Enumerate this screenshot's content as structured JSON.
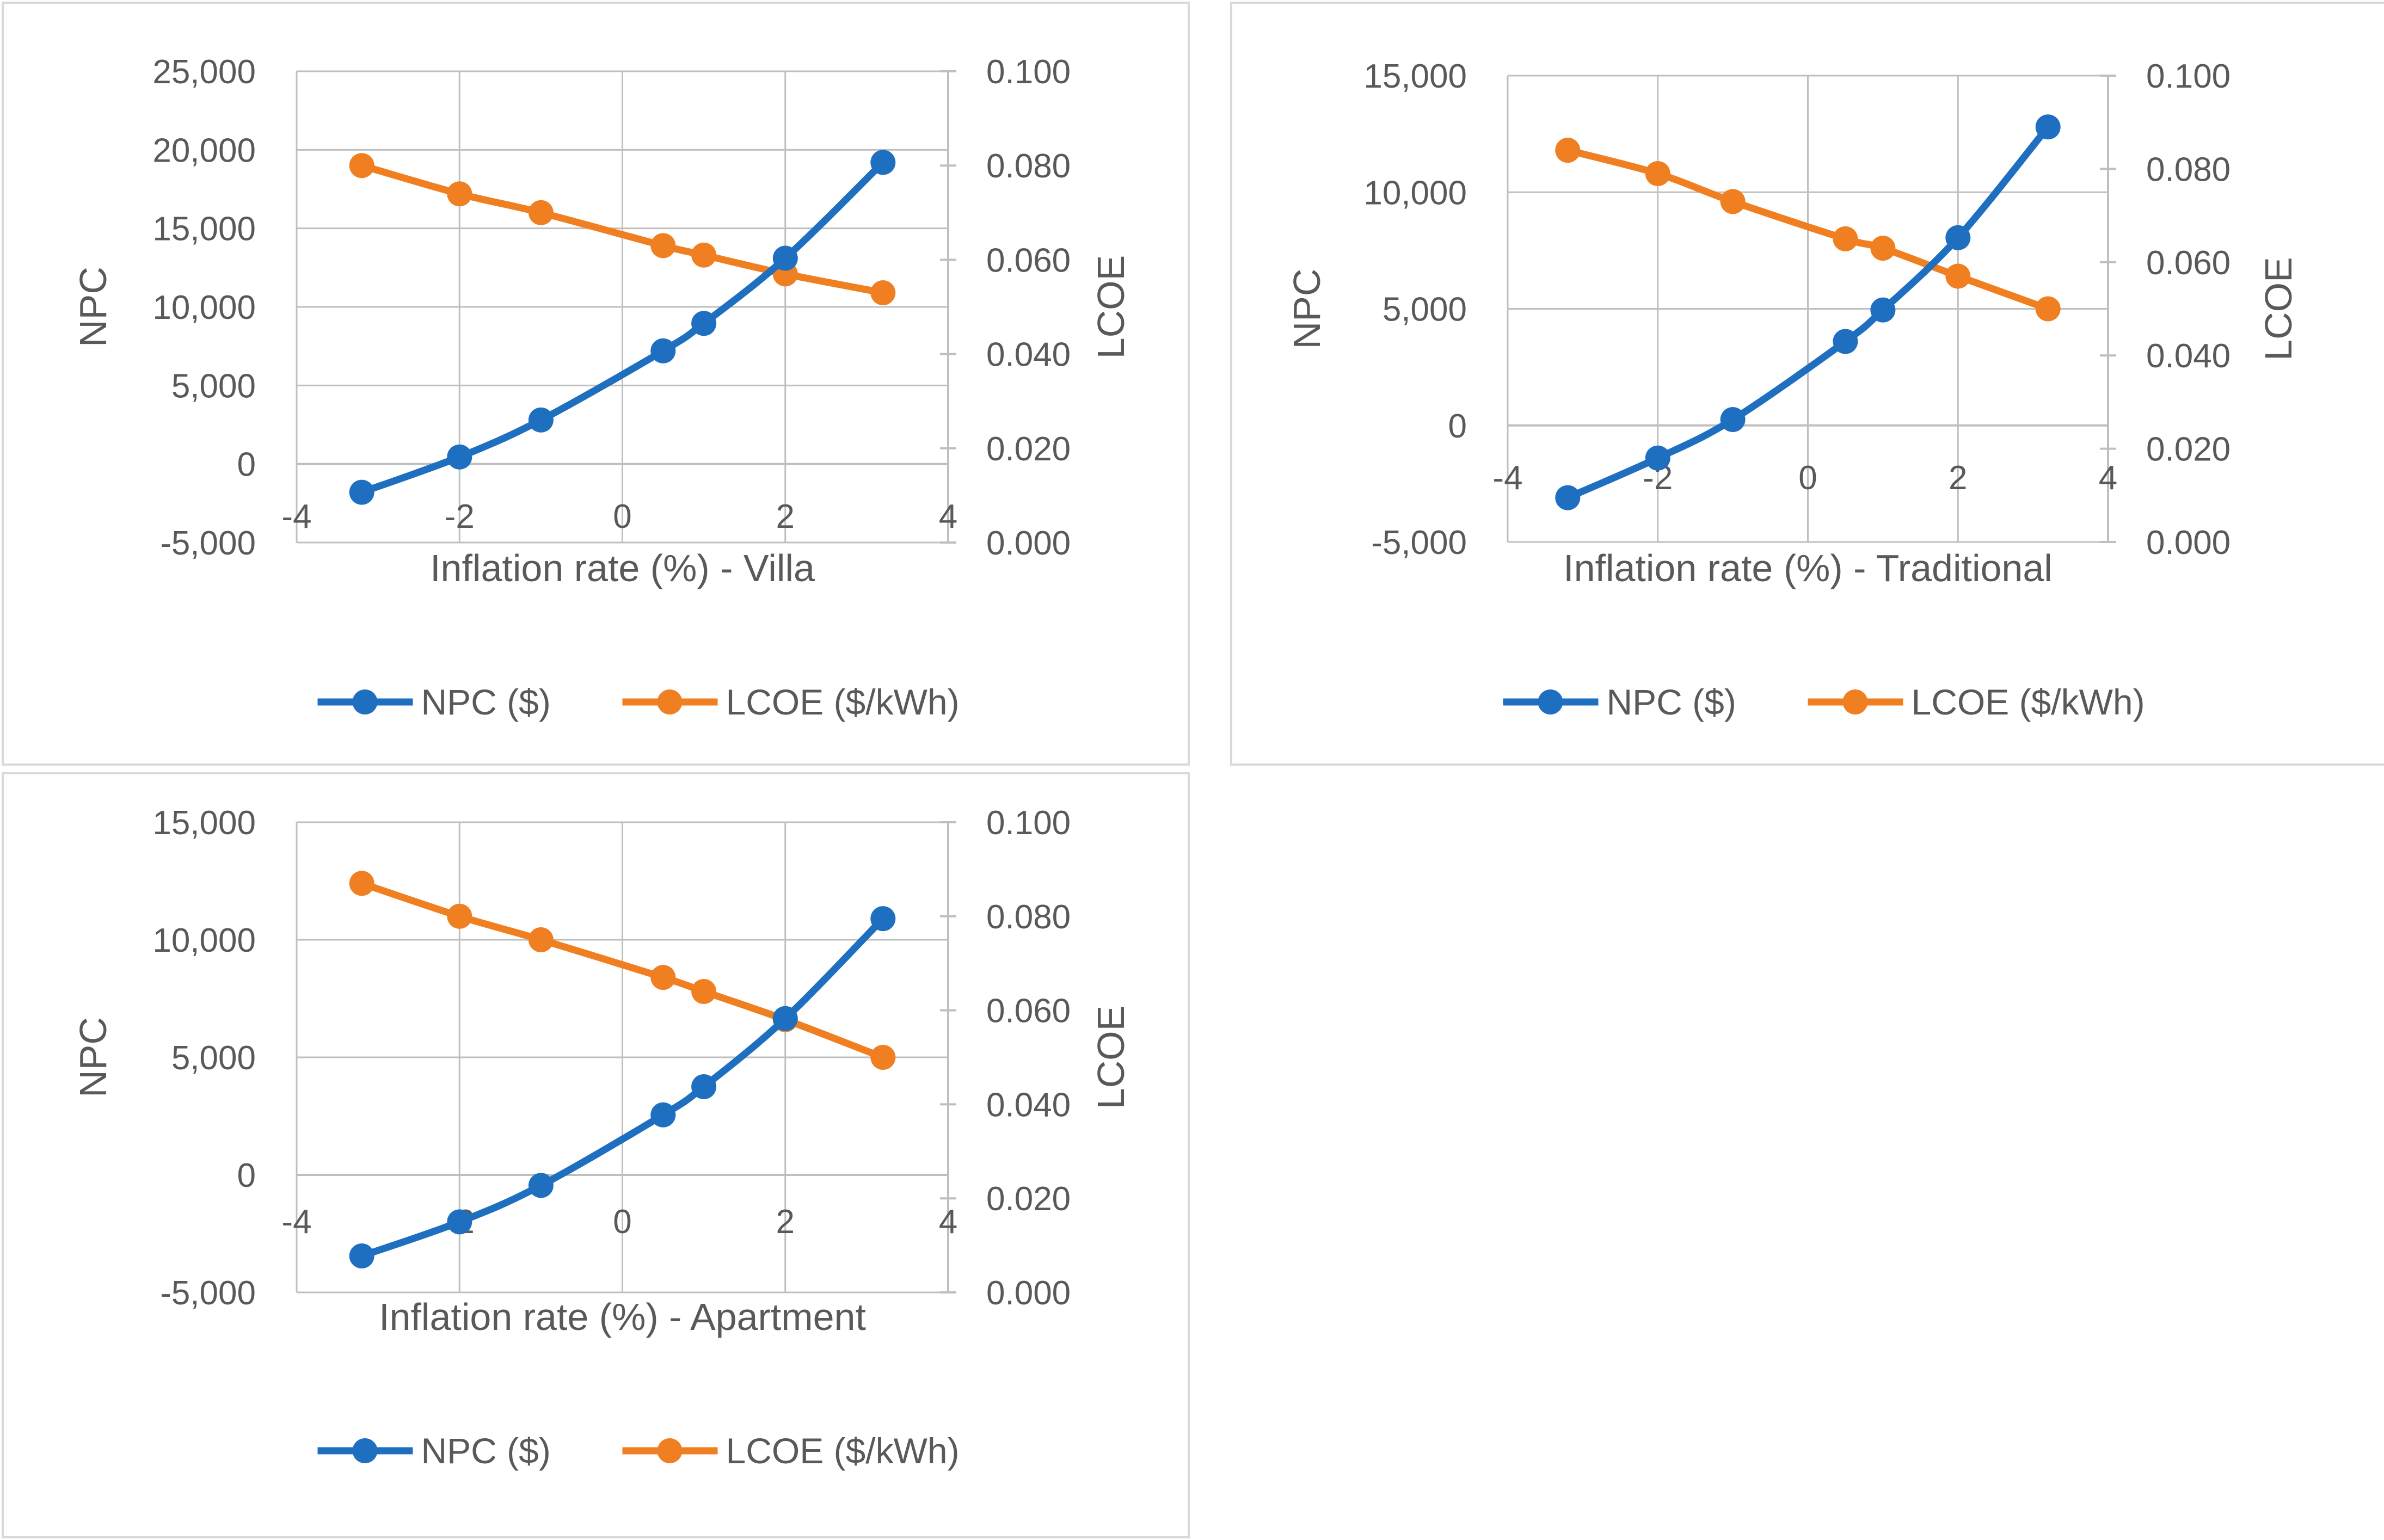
{
  "colors": {
    "npc": "#1F6FC0",
    "lcoe": "#F07F22",
    "axis": "#BFBFBF",
    "text": "#595959",
    "frame": "#D9D9D9"
  },
  "legend": {
    "npc_label": "NPC ($)",
    "lcoe_label": "LCOE ($/kWh)"
  },
  "chart_data": [
    {
      "type": "line",
      "title": "",
      "xlabel": "Inflation rate (%) - Villa",
      "ylabel": "NPC",
      "y2label": "LCOE",
      "xlim": [
        -4,
        4
      ],
      "x_ticks": [
        "-4",
        "-2",
        "0",
        "2",
        "4"
      ],
      "ylim": [
        -5000,
        25000
      ],
      "y_ticks": [
        "25,000",
        "20,000",
        "15,000",
        "10,000",
        "5,000",
        "0",
        "-5,000"
      ],
      "y2lim": [
        0,
        0.1
      ],
      "y2_ticks": [
        "0.100",
        "0.080",
        "0.060",
        "0.040",
        "0.020",
        "0.000"
      ],
      "grid": true,
      "legend_position": "bottom",
      "x": [
        -3.2,
        -2,
        -1,
        0.5,
        1,
        2,
        3.2
      ],
      "series": [
        {
          "name": "NPC ($)",
          "axis": "left",
          "values": [
            -1800,
            450,
            2800,
            7200,
            8950,
            13100,
            19200
          ]
        },
        {
          "name": "LCOE ($/kWh)",
          "axis": "right",
          "values": [
            0.08,
            0.074,
            0.07,
            0.063,
            0.061,
            0.057,
            0.053
          ]
        }
      ]
    },
    {
      "type": "line",
      "title": "",
      "xlabel": "Inflation rate (%) - Traditional",
      "ylabel": "NPC",
      "y2label": "LCOE",
      "xlim": [
        -4,
        4
      ],
      "x_ticks": [
        "-4",
        "-2",
        "0",
        "2",
        "4"
      ],
      "ylim": [
        -5000,
        15000
      ],
      "y_ticks": [
        "15,000",
        "10,000",
        "5,000",
        "0",
        "-5,000"
      ],
      "y2lim": [
        0,
        0.1
      ],
      "y2_ticks": [
        "0.100",
        "0.080",
        "0.060",
        "0.040",
        "0.020",
        "0.000"
      ],
      "grid": true,
      "legend_position": "bottom",
      "x": [
        -3.2,
        -2,
        -1,
        0.5,
        1,
        2,
        3.2
      ],
      "series": [
        {
          "name": "NPC ($)",
          "axis": "left",
          "values": [
            -3100,
            -1400,
            250,
            3600,
            4950,
            8050,
            12800
          ]
        },
        {
          "name": "LCOE ($/kWh)",
          "axis": "right",
          "values": [
            0.084,
            0.079,
            0.073,
            0.065,
            0.063,
            0.057,
            0.05
          ]
        }
      ]
    },
    {
      "type": "line",
      "title": "",
      "xlabel": "Inflation rate (%) - Apartment",
      "ylabel": "NPC",
      "y2label": "LCOE",
      "xlim": [
        -4,
        4
      ],
      "x_ticks": [
        "-4",
        "-2",
        "0",
        "2",
        "4"
      ],
      "ylim": [
        -5000,
        15000
      ],
      "y_ticks": [
        "15,000",
        "10,000",
        "5,000",
        "0",
        "-5,000"
      ],
      "y2lim": [
        0,
        0.1
      ],
      "y2_ticks": [
        "0.100",
        "0.080",
        "0.060",
        "0.040",
        "0.020",
        "0.000"
      ],
      "grid": true,
      "legend_position": "bottom",
      "x": [
        -3.2,
        -2,
        -1,
        0.5,
        1,
        2,
        3.2
      ],
      "series": [
        {
          "name": "NPC ($)",
          "axis": "left",
          "values": [
            -3450,
            -2000,
            -450,
            2550,
            3750,
            6650,
            10900
          ]
        },
        {
          "name": "LCOE ($/kWh)",
          "axis": "right",
          "values": [
            0.087,
            0.08,
            0.075,
            0.067,
            0.064,
            0.058,
            0.05
          ]
        }
      ]
    }
  ]
}
